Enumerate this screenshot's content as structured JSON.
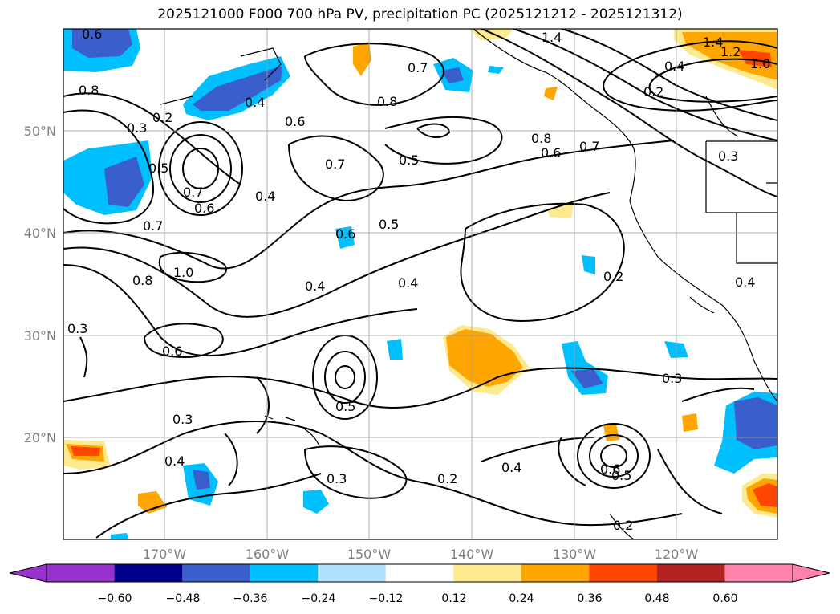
{
  "title": "2025121000 F000 700 hPa PV, precipitation PC (2025121212 - 2025121312)",
  "map": {
    "projection": "lat-lon",
    "lon_range": [
      -180,
      -110
    ],
    "lat_range": [
      10,
      60
    ],
    "lon_ticks": [
      "170°W",
      "160°W",
      "150°W",
      "140°W",
      "130°W",
      "120°W"
    ],
    "lat_ticks": [
      "50°N",
      "40°N",
      "30°N",
      "20°N"
    ],
    "gridlines": true,
    "coastlines": true,
    "state_borders": true
  },
  "contour_labels": [
    {
      "text": "0.6"
    },
    {
      "text": "0.8"
    },
    {
      "text": "0.2"
    },
    {
      "text": "0.3"
    },
    {
      "text": "0.5"
    },
    {
      "text": "0.7"
    },
    {
      "text": "0.6"
    },
    {
      "text": "0.7"
    },
    {
      "text": "0.4"
    },
    {
      "text": "0.4"
    },
    {
      "text": "0.6"
    },
    {
      "text": "0.7"
    },
    {
      "text": "0.7"
    },
    {
      "text": "0.8"
    },
    {
      "text": "0.5"
    },
    {
      "text": "0.6"
    },
    {
      "text": "0.5"
    },
    {
      "text": "1.4"
    },
    {
      "text": "1.4"
    },
    {
      "text": "1.2"
    },
    {
      "text": "1.0"
    },
    {
      "text": "0.4"
    },
    {
      "text": "0.2"
    },
    {
      "text": "0.8"
    },
    {
      "text": "0.6"
    },
    {
      "text": "0.7"
    },
    {
      "text": "0.3"
    },
    {
      "text": "0.8"
    },
    {
      "text": "1.0"
    },
    {
      "text": "0.4"
    },
    {
      "text": "0.4"
    },
    {
      "text": "0.2"
    },
    {
      "text": "0.4"
    },
    {
      "text": "0.3"
    },
    {
      "text": "0.6"
    },
    {
      "text": "0.5"
    },
    {
      "text": "0.3"
    },
    {
      "text": "0.3"
    },
    {
      "text": "0.4"
    },
    {
      "text": "0.3"
    },
    {
      "text": "0.2"
    },
    {
      "text": "0.4"
    },
    {
      "text": "0.6"
    },
    {
      "text": "0.5"
    },
    {
      "text": "0.2"
    }
  ],
  "colorbar": {
    "labels": [
      "−0.60",
      "−0.48",
      "−0.36",
      "−0.24",
      "−0.12",
      "0.12",
      "0.24",
      "0.36",
      "0.48",
      "0.60"
    ],
    "colors": [
      "#9932cc",
      "#00008b",
      "#3a5fcd",
      "#00bfff",
      "#b0e2ff",
      "#ffffff",
      "#fdea8f",
      "#ffa500",
      "#ff4500",
      "#b22222",
      "#ff82ab"
    ]
  }
}
